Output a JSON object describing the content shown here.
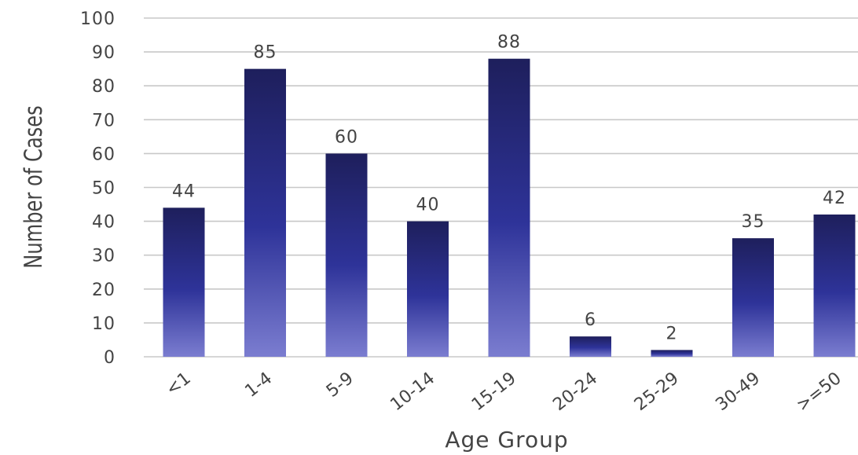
{
  "chart_data": {
    "type": "bar",
    "title": "",
    "xlabel": "Age Group",
    "ylabel": "Number of Cases",
    "categories": [
      "<1",
      "1-4",
      "5-9",
      "10-14",
      "15-19",
      "20-24",
      "25-29",
      "30-49",
      ">=50"
    ],
    "values": [
      44,
      85,
      60,
      40,
      88,
      6,
      2,
      35,
      42
    ],
    "data_labels": [
      "44",
      "85",
      "60",
      "40",
      "88",
      "6",
      "2",
      "35",
      "42"
    ],
    "ylim": [
      0,
      100
    ],
    "yticks": [
      0,
      10,
      20,
      30,
      40,
      50,
      60,
      70,
      80,
      90,
      100
    ],
    "ytick_labels": [
      "0",
      "10",
      "20",
      "30",
      "40",
      "50",
      "60",
      "70",
      "80",
      "90",
      "100"
    ],
    "grid": true,
    "legend": "none",
    "colors": {
      "bar_top": "#1e1f5c",
      "bar_mid": "#2e3399",
      "bar_bottom": "#7b7dd0",
      "grid": "#c8c8c8",
      "axis_text": "#444444"
    }
  }
}
